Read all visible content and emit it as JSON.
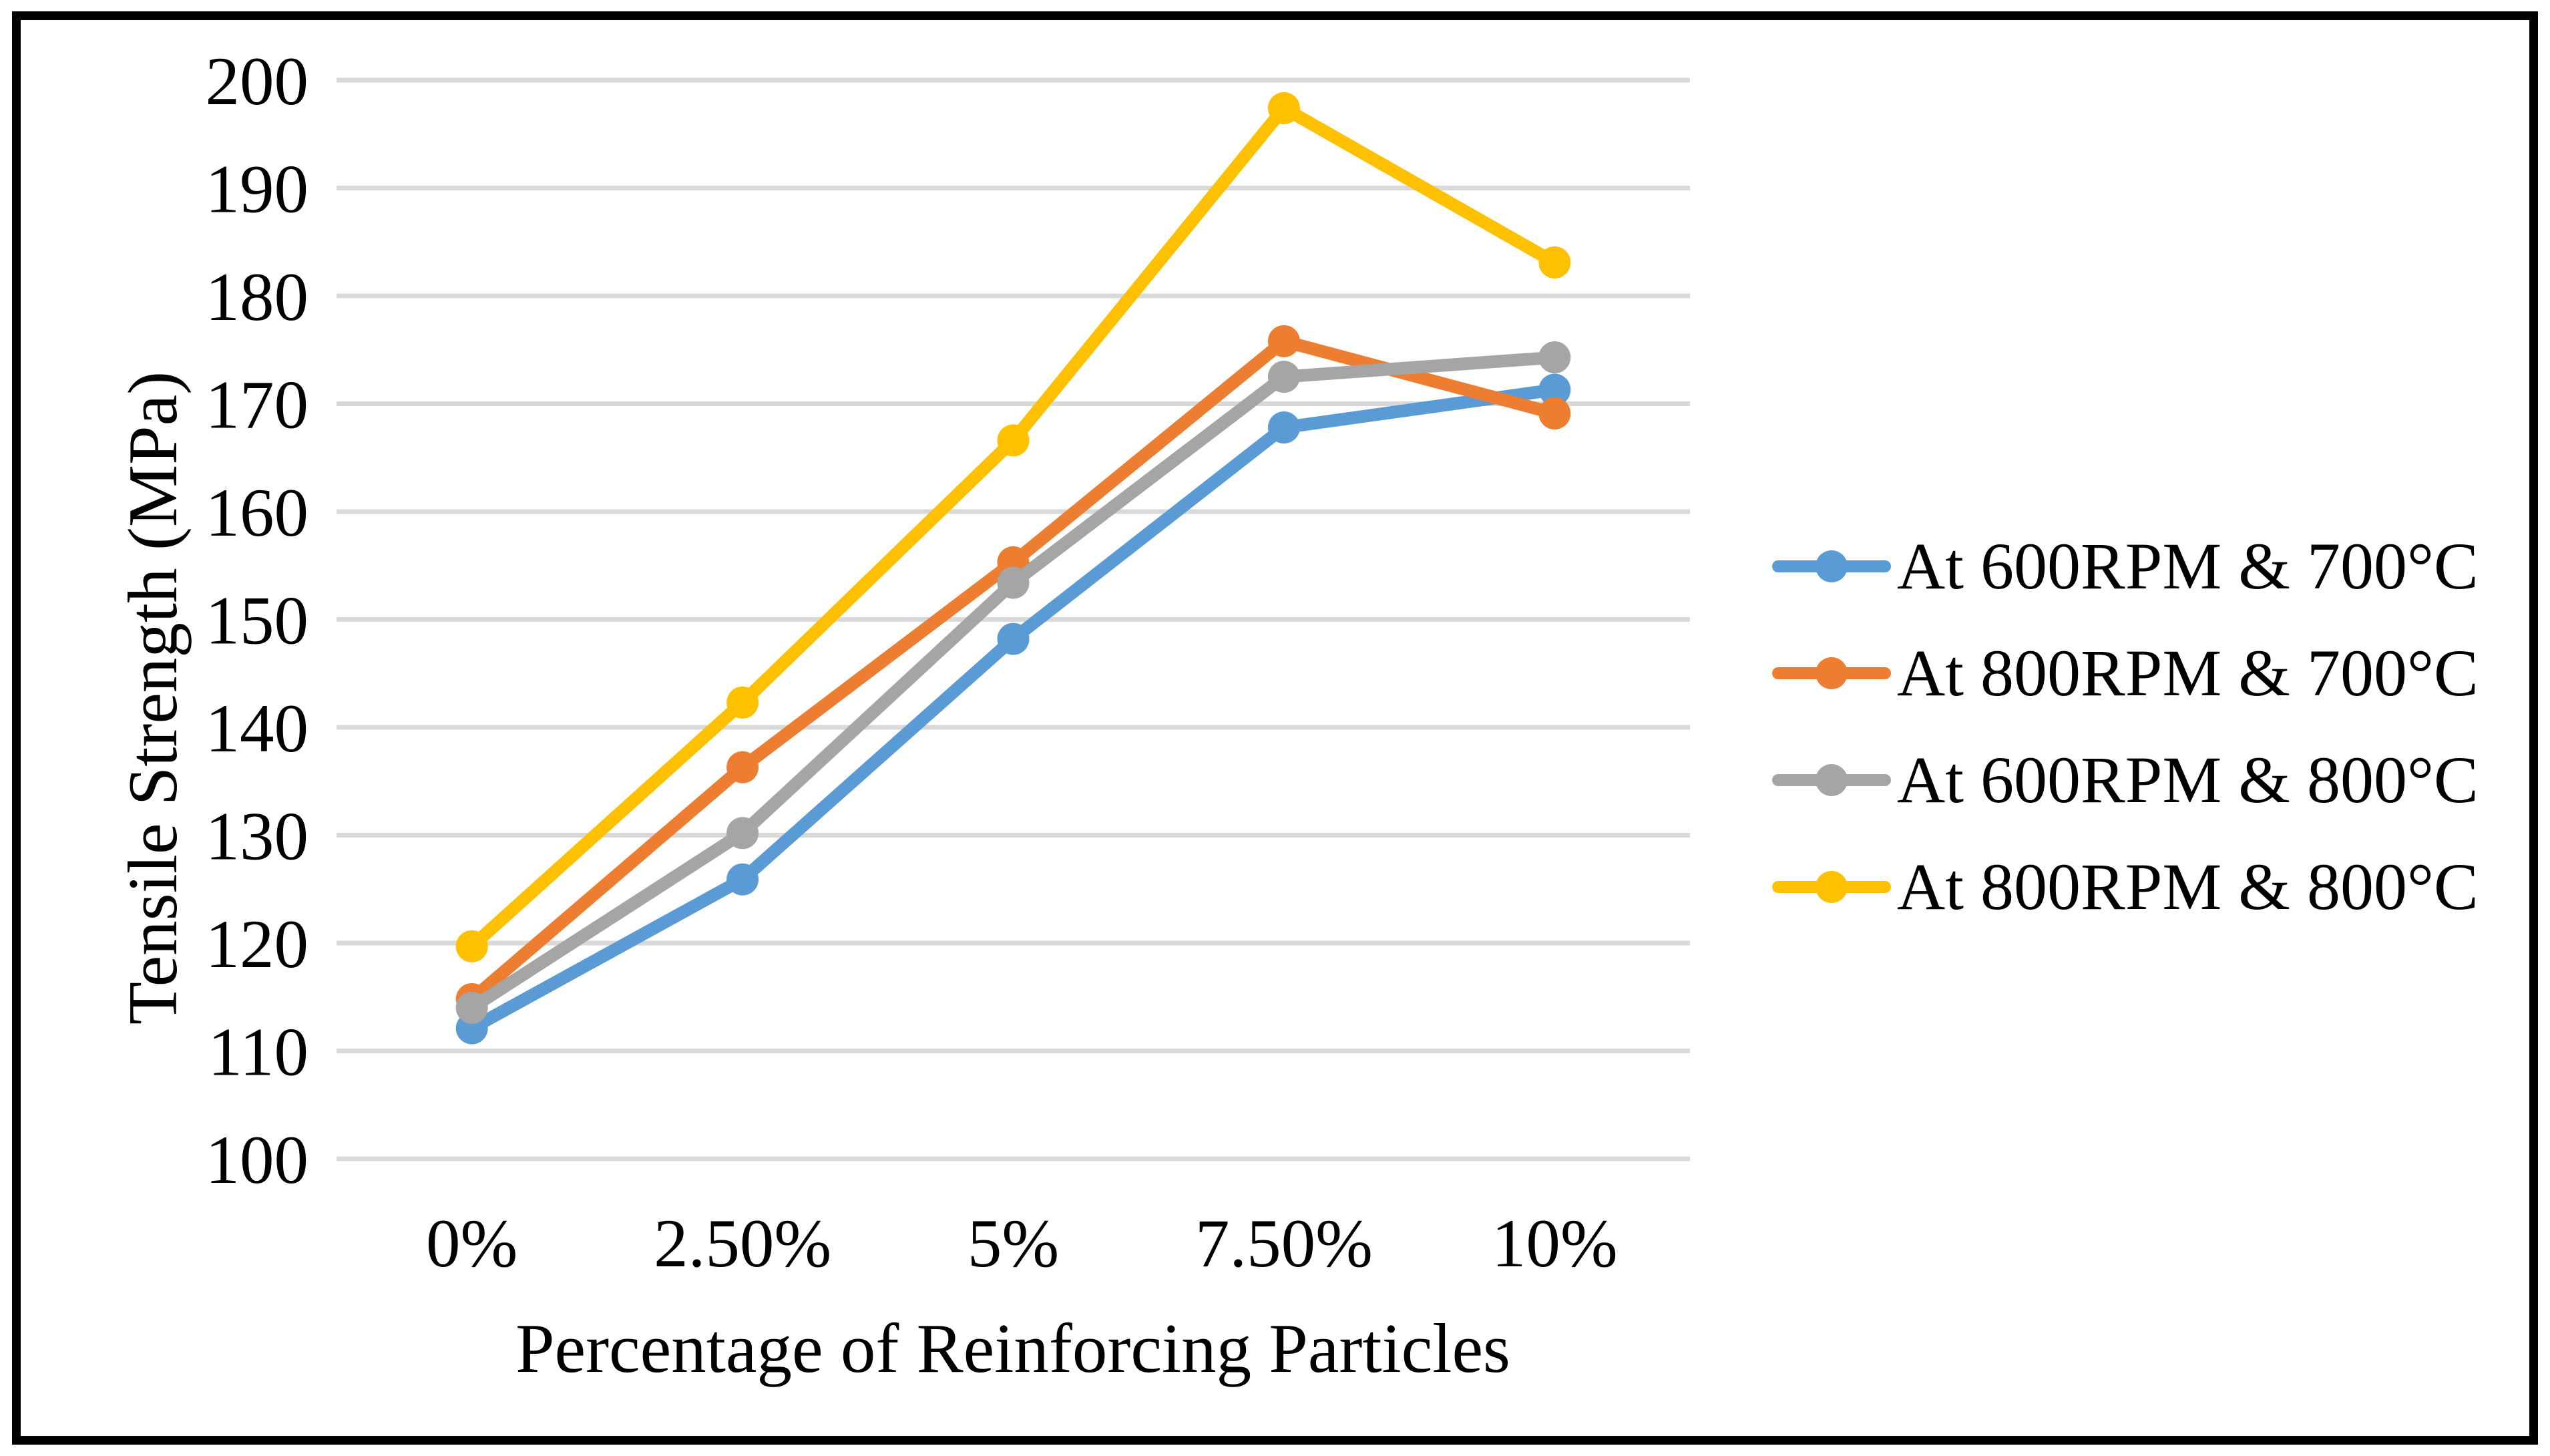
{
  "figure": {
    "background": "#FFFFFF",
    "frame_border_color": "#000000"
  },
  "chart_data": {
    "type": "line",
    "title": "",
    "xlabel": "Percentage of Reinforcing Particles",
    "ylabel": "Tensile Strength (MPa)",
    "categories": [
      "0%",
      "2.50%",
      "5%",
      "7.50%",
      "10%"
    ],
    "ylim": [
      100,
      200
    ],
    "yticks": [
      100,
      110,
      120,
      130,
      140,
      150,
      160,
      170,
      180,
      190,
      200
    ],
    "grid": "horizontal-only",
    "gridline_color": "#D9D9D9",
    "legend_position": "right",
    "series": [
      {
        "name": "At 600RPM & 700°C",
        "color": "#5B9BD5",
        "values": [
          112.1,
          125.9,
          148.2,
          167.8,
          171.3
        ]
      },
      {
        "name": "At 800RPM & 700°C",
        "color": "#ED7D31",
        "values": [
          114.8,
          136.3,
          155.3,
          175.8,
          169.1
        ]
      },
      {
        "name": "At 600RPM & 800°C",
        "color": "#A5A5A5",
        "values": [
          114.0,
          130.2,
          153.4,
          172.5,
          174.3
        ]
      },
      {
        "name": "At 800RPM & 800°C",
        "color": "#FFC000",
        "values": [
          119.7,
          142.3,
          166.6,
          197.4,
          183.1
        ]
      }
    ]
  }
}
